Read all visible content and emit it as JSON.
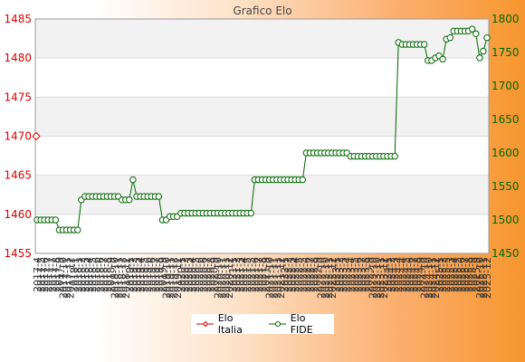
{
  "chart_data": {
    "type": "line",
    "title": "Grafico Elo",
    "y_left": {
      "min": 1455,
      "max": 1485,
      "ticks": [
        1455,
        1460,
        1465,
        1470,
        1475,
        1480,
        1485
      ],
      "color": "#dd0000"
    },
    "y_right": {
      "min": 1450,
      "max": 1800,
      "ticks": [
        1450,
        1500,
        1550,
        1600,
        1650,
        1700,
        1750,
        1800
      ],
      "color": "#006600"
    },
    "x_labels_sample": [
      "2017-4",
      "2025-12"
    ],
    "legend": "bottom-center",
    "series": [
      {
        "name": "Elo Italia",
        "axis": "left",
        "color": "#dd0000",
        "points": [
          {
            "x": "2017-4",
            "y": 1470
          }
        ]
      },
      {
        "name": "Elo FIDE",
        "axis": "right",
        "color": "#006600",
        "values": [
          1500,
          1500,
          1500,
          1500,
          1500,
          1500,
          1485,
          1485,
          1485,
          1485,
          1485,
          1485,
          1530,
          1535,
          1535,
          1535,
          1535,
          1535,
          1535,
          1535,
          1535,
          1535,
          1535,
          1530,
          1530,
          1530,
          1560,
          1535,
          1535,
          1535,
          1535,
          1535,
          1535,
          1535,
          1500,
          1500,
          1505,
          1505,
          1505,
          1510,
          1510,
          1510,
          1510,
          1510,
          1510,
          1510,
          1510,
          1510,
          1510,
          1510,
          1510,
          1510,
          1510,
          1510,
          1510,
          1510,
          1510,
          1510,
          1510,
          1560,
          1560,
          1560,
          1560,
          1560,
          1560,
          1560,
          1560,
          1560,
          1560,
          1560,
          1560,
          1560,
          1560,
          1600,
          1600,
          1600,
          1600,
          1600,
          1600,
          1600,
          1600,
          1600,
          1600,
          1600,
          1600,
          1595,
          1595,
          1595,
          1595,
          1595,
          1595,
          1595,
          1595,
          1595,
          1595,
          1595,
          1595,
          1595,
          1765,
          1762,
          1762,
          1762,
          1762,
          1762,
          1762,
          1762,
          1738,
          1738,
          1742,
          1745,
          1740,
          1770,
          1772,
          1782,
          1782,
          1782,
          1782,
          1782,
          1785,
          1778,
          1742,
          1752,
          1772
        ]
      }
    ]
  }
}
